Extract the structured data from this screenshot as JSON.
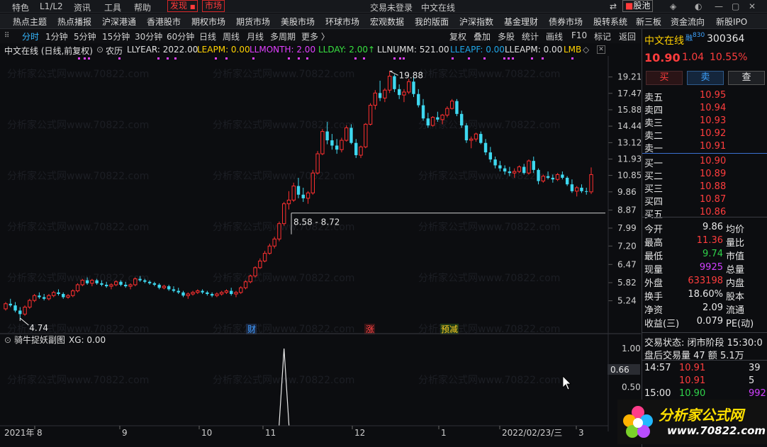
{
  "menu": {
    "items": [
      "特色",
      "L1/L2",
      "资讯",
      "工具",
      "帮助"
    ],
    "find_btn": "发现",
    "market_btn": "市场",
    "center_left": "交易未登录",
    "center_right": "中文在线",
    "stock_pool": "股池"
  },
  "nav": [
    "热点主题",
    "热点播报",
    "沪深港通",
    "香港股市",
    "期权市场",
    "期货市场",
    "美股市场",
    "环球市场",
    "宏观数据",
    "我的版面",
    "沪深指数",
    "基金理财",
    "债券市场",
    "股转系统",
    "新三板",
    "资金流向",
    "新股IPO"
  ],
  "periods": [
    "分时",
    "1分钟",
    "5分钟",
    "15分钟",
    "30分钟",
    "60分钟",
    "日线",
    "周线",
    "月线",
    "多周期",
    "更多 〉"
  ],
  "tools": [
    "复权",
    "叠加",
    "多股",
    "统计",
    "画线",
    "F10",
    "标记",
    "返回"
  ],
  "info": {
    "title": "中文在线 (日线,前复权)",
    "lunar": "农历",
    "llyear": "LLYEAR: 2022.00",
    "leapm": "LEAPM: 0.00",
    "llmonth": "LLMONTH: 2.00",
    "llday": "LLDAY: 2.00↑",
    "llnumm": "LLNUMM: 521.00",
    "lleapf": "LLEAPF: 0.00",
    "lleapm": "LLEAPM: 0.00",
    "lmb": "LMB"
  },
  "annotations": {
    "high": "19.88",
    "low": "4.74",
    "range": "8.58 - 8.72",
    "tag_cai": "财",
    "tag_zhang": "涨",
    "tag_yujian": "预减"
  },
  "price_axis": [
    "19.21",
    "17.47",
    "15.88",
    "14.44",
    "13.12",
    "11.93",
    "10.85",
    "9.86",
    "8.87",
    "7.99",
    "7.20",
    "6.47",
    "5.82",
    "5.24"
  ],
  "sub_chart": {
    "title": "骑牛捉妖副图",
    "xg": "XG: 0.00",
    "axis": [
      "1.00",
      "0.50"
    ],
    "current": "0.66"
  },
  "date_axis": [
    "2021年",
    "8",
    "9",
    "10",
    "11",
    "12",
    "1",
    "2022/02/23/三",
    "3"
  ],
  "watermark": "分析家公式网www.70822.com",
  "panel": {
    "name": "中文在线",
    "badge": "融",
    "code": "300364",
    "price": "10.90",
    "change": "1.04",
    "pct": "10.55%",
    "buy": "买",
    "sell": "卖",
    "query": "查",
    "asks": [
      {
        "label": "卖五",
        "price": "10.95"
      },
      {
        "label": "卖四",
        "price": "10.94"
      },
      {
        "label": "卖三",
        "price": "10.93"
      },
      {
        "label": "卖二",
        "price": "10.92"
      },
      {
        "label": "卖一",
        "price": "10.91"
      }
    ],
    "bids": [
      {
        "label": "买一",
        "price": "10.90"
      },
      {
        "label": "买二",
        "price": "10.89"
      },
      {
        "label": "买三",
        "price": "10.88"
      },
      {
        "label": "买四",
        "price": "10.87"
      },
      {
        "label": "买五",
        "price": "10.86"
      }
    ],
    "stats": [
      {
        "l": "今开",
        "v": "9.86",
        "r": "均价"
      },
      {
        "l": "最高",
        "v": "11.36",
        "r": "量比"
      },
      {
        "l": "最低",
        "v": "9.74",
        "r": "市值"
      },
      {
        "l": "现量",
        "v": "9925",
        "r": "总量"
      },
      {
        "l": "外盘",
        "v": "633198",
        "r": "内盘"
      },
      {
        "l": "换手",
        "v": "18.60%",
        "r": "股本"
      },
      {
        "l": "净资",
        "v": "2.09",
        "r": "流通"
      },
      {
        "l": "收益(三)",
        "v": "0.079",
        "r": "PE(动)"
      }
    ],
    "status": "交易状态: 闭市阶段 15:30:0",
    "after": "盘后交易量 47 额 5.1万",
    "ticks": [
      {
        "t": "14:57",
        "p": "10.91",
        "v": "39"
      },
      {
        "t": "",
        "p": "10.91",
        "v": "5"
      },
      {
        "t": "15:00",
        "p": "10.90",
        "v": "992"
      }
    ]
  },
  "logo": {
    "name": "分析家公式网",
    "url": "www.70822.com"
  },
  "chart_data": {
    "type": "candlestick",
    "title": "中文在线 (日线,前复权)",
    "scale": "log",
    "ylim": [
      4.7,
      21.0
    ],
    "x_labels": [
      "2021年 8",
      "9",
      "10",
      "11",
      "12",
      "1",
      "2022/02/23/三",
      "3"
    ],
    "annotations": {
      "high": 19.88,
      "low": 4.74,
      "range": [
        8.58,
        8.72
      ]
    },
    "candles": [
      [
        5.0,
        5.2,
        4.95,
        5.15
      ],
      [
        5.15,
        5.3,
        5.05,
        5.1
      ],
      [
        5.1,
        5.2,
        4.9,
        4.95
      ],
      [
        4.95,
        5.05,
        4.74,
        4.85
      ],
      [
        4.85,
        5.1,
        4.8,
        5.05
      ],
      [
        5.05,
        5.3,
        5.0,
        5.25
      ],
      [
        5.25,
        5.45,
        5.2,
        5.4
      ],
      [
        5.4,
        5.5,
        5.3,
        5.35
      ],
      [
        5.35,
        5.45,
        5.25,
        5.3
      ],
      [
        5.3,
        5.45,
        5.25,
        5.4
      ],
      [
        5.4,
        5.55,
        5.35,
        5.5
      ],
      [
        5.5,
        5.6,
        5.4,
        5.45
      ],
      [
        5.45,
        5.5,
        5.3,
        5.35
      ],
      [
        5.35,
        5.45,
        5.3,
        5.4
      ],
      [
        5.4,
        5.6,
        5.35,
        5.55
      ],
      [
        5.55,
        5.8,
        5.5,
        5.75
      ],
      [
        5.75,
        5.95,
        5.7,
        5.9
      ],
      [
        5.9,
        6.0,
        5.75,
        5.8
      ],
      [
        5.8,
        5.95,
        5.7,
        5.9
      ],
      [
        5.9,
        5.95,
        5.75,
        5.8
      ],
      [
        5.8,
        5.9,
        5.7,
        5.75
      ],
      [
        5.75,
        5.85,
        5.65,
        5.7
      ],
      [
        5.7,
        5.8,
        5.6,
        5.75
      ],
      [
        5.75,
        5.9,
        5.7,
        5.85
      ],
      [
        5.85,
        5.9,
        5.7,
        5.75
      ],
      [
        5.75,
        5.85,
        5.65,
        5.7
      ],
      [
        5.7,
        5.8,
        5.6,
        5.75
      ],
      [
        5.75,
        6.0,
        5.7,
        5.95
      ],
      [
        5.95,
        6.05,
        5.85,
        5.9
      ],
      [
        5.9,
        5.95,
        5.8,
        5.85
      ],
      [
        5.85,
        5.9,
        5.75,
        5.8
      ],
      [
        5.8,
        5.85,
        5.7,
        5.75
      ],
      [
        5.75,
        5.8,
        5.6,
        5.65
      ],
      [
        5.65,
        5.75,
        5.6,
        5.7
      ],
      [
        5.7,
        5.75,
        5.55,
        5.6
      ],
      [
        5.6,
        5.7,
        5.5,
        5.55
      ],
      [
        5.55,
        5.65,
        5.45,
        5.5
      ],
      [
        5.5,
        5.55,
        5.35,
        5.4
      ],
      [
        5.4,
        5.5,
        5.3,
        5.45
      ],
      [
        5.45,
        5.55,
        5.4,
        5.5
      ],
      [
        5.5,
        5.6,
        5.45,
        5.55
      ],
      [
        5.55,
        5.6,
        5.45,
        5.5
      ],
      [
        5.5,
        5.55,
        5.4,
        5.45
      ],
      [
        5.45,
        5.5,
        5.35,
        5.4
      ],
      [
        5.4,
        5.5,
        5.35,
        5.45
      ],
      [
        5.45,
        5.55,
        5.4,
        5.5
      ],
      [
        5.5,
        5.6,
        5.45,
        5.55
      ],
      [
        5.55,
        5.65,
        5.4,
        5.45
      ],
      [
        5.45,
        5.55,
        5.35,
        5.5
      ],
      [
        5.5,
        5.7,
        5.45,
        5.65
      ],
      [
        5.65,
        5.9,
        5.6,
        5.85
      ],
      [
        5.85,
        6.1,
        5.8,
        6.05
      ],
      [
        6.05,
        6.4,
        6.0,
        6.35
      ],
      [
        6.35,
        6.7,
        6.3,
        6.6
      ],
      [
        6.6,
        7.0,
        6.55,
        6.9
      ],
      [
        6.9,
        7.3,
        6.85,
        7.2
      ],
      [
        7.2,
        7.6,
        7.1,
        7.5
      ],
      [
        7.5,
        8.3,
        7.4,
        8.2
      ],
      [
        8.2,
        9.3,
        8.1,
        9.2
      ],
      [
        9.2,
        9.9,
        8.9,
        9.4
      ],
      [
        9.4,
        10.4,
        9.3,
        10.2
      ],
      [
        10.2,
        10.7,
        9.5,
        9.7
      ],
      [
        9.7,
        10.1,
        9.3,
        9.5
      ],
      [
        9.5,
        9.9,
        9.2,
        9.8
      ],
      [
        9.8,
        11.2,
        9.7,
        11.0
      ],
      [
        11.0,
        12.5,
        10.9,
        12.3
      ],
      [
        12.3,
        14.2,
        12.2,
        14.0
      ],
      [
        14.0,
        14.8,
        13.0,
        13.3
      ],
      [
        13.3,
        13.8,
        12.6,
        12.9
      ],
      [
        12.9,
        13.4,
        12.3,
        12.6
      ],
      [
        12.6,
        13.5,
        12.4,
        13.3
      ],
      [
        13.3,
        14.5,
        13.2,
        14.3
      ],
      [
        14.3,
        14.6,
        13.0,
        13.1
      ],
      [
        13.1,
        13.4,
        12.0,
        12.2
      ],
      [
        12.2,
        12.9,
        12.0,
        12.8
      ],
      [
        12.8,
        14.7,
        12.7,
        14.6
      ],
      [
        14.6,
        16.5,
        14.5,
        16.3
      ],
      [
        16.3,
        17.8,
        15.9,
        17.5
      ],
      [
        17.5,
        18.8,
        16.7,
        17.0
      ],
      [
        17.0,
        18.0,
        16.6,
        17.8
      ],
      [
        17.8,
        19.88,
        17.5,
        19.3
      ],
      [
        19.3,
        19.5,
        17.6,
        17.9
      ],
      [
        17.9,
        18.4,
        16.9,
        17.3
      ],
      [
        17.3,
        17.9,
        16.6,
        17.6
      ],
      [
        17.6,
        19.0,
        17.4,
        18.7
      ],
      [
        18.7,
        19.2,
        17.1,
        17.4
      ],
      [
        17.4,
        17.9,
        16.1,
        16.3
      ],
      [
        16.3,
        16.9,
        14.9,
        15.1
      ],
      [
        15.1,
        15.6,
        14.3,
        14.5
      ],
      [
        14.5,
        15.3,
        14.4,
        15.2
      ],
      [
        15.2,
        15.7,
        14.8,
        15.0
      ],
      [
        15.0,
        15.5,
        14.6,
        15.4
      ],
      [
        15.4,
        16.2,
        15.2,
        16.0
      ],
      [
        16.0,
        16.9,
        15.9,
        16.7
      ],
      [
        16.7,
        16.9,
        15.3,
        15.5
      ],
      [
        15.5,
        15.8,
        14.3,
        14.5
      ],
      [
        14.5,
        14.7,
        13.1,
        13.3
      ],
      [
        13.3,
        13.6,
        12.7,
        13.4
      ],
      [
        13.4,
        13.9,
        13.2,
        13.8
      ],
      [
        13.8,
        14.0,
        13.0,
        13.1
      ],
      [
        13.1,
        13.4,
        12.2,
        12.4
      ],
      [
        12.4,
        12.8,
        11.7,
        11.9
      ],
      [
        11.9,
        12.1,
        11.3,
        11.5
      ],
      [
        11.5,
        11.8,
        11.1,
        11.3
      ],
      [
        11.3,
        11.5,
        10.9,
        11.1
      ],
      [
        11.1,
        11.4,
        10.8,
        11.0
      ],
      [
        11.0,
        11.3,
        10.7,
        11.1
      ],
      [
        11.1,
        11.5,
        11.0,
        11.4
      ],
      [
        11.4,
        11.6,
        10.9,
        11.0
      ],
      [
        11.0,
        11.9,
        10.9,
        11.8
      ],
      [
        11.8,
        12.1,
        11.0,
        11.2
      ],
      [
        11.2,
        11.3,
        10.3,
        10.5
      ],
      [
        10.5,
        10.9,
        10.4,
        10.8
      ],
      [
        10.8,
        11.1,
        10.6,
        10.7
      ],
      [
        10.7,
        10.9,
        10.4,
        10.6
      ],
      [
        10.6,
        11.0,
        10.5,
        10.9
      ],
      [
        10.9,
        11.1,
        10.6,
        10.7
      ],
      [
        10.7,
        10.8,
        10.2,
        10.3
      ],
      [
        10.3,
        10.6,
        9.8,
        9.9
      ],
      [
        9.9,
        10.2,
        9.6,
        10.1
      ],
      [
        10.1,
        10.3,
        9.8,
        9.9
      ],
      [
        9.9,
        10.1,
        9.7,
        9.86
      ],
      [
        9.86,
        11.36,
        9.74,
        10.9
      ]
    ],
    "sub_series": {
      "name": "XG",
      "spike_index": 58,
      "spike_value": 1.0
    }
  }
}
